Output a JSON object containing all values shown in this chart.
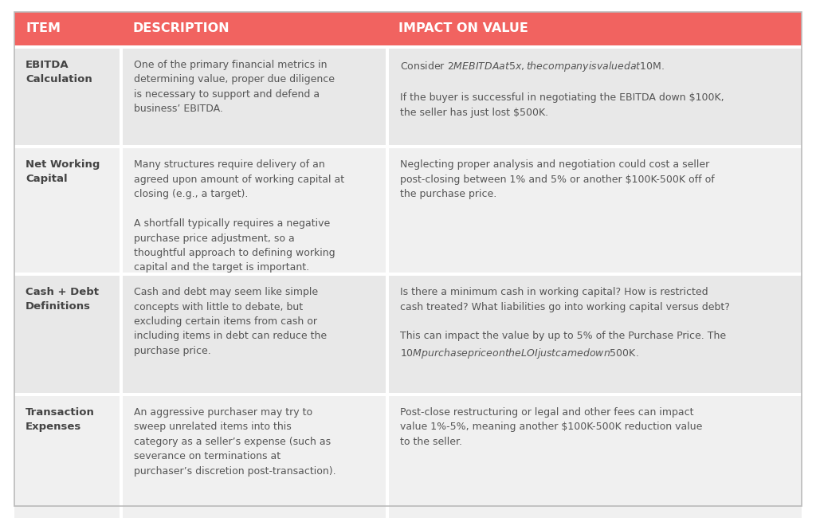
{
  "header_bg": "#F16360",
  "header_text_color": "#FFFFFF",
  "row_bg_1": "#E8E8E8",
  "row_bg_2": "#F0F0F0",
  "cell_text_color": "#555555",
  "item_text_color": "#444444",
  "outer_bg": "#FFFFFF",
  "headers": [
    "ITEM",
    "DESCRIPTION",
    "IMPACT ON VALUE"
  ],
  "rows": [
    {
      "item": "EBITDA\nCalculation",
      "description": "One of the primary financial metrics in\ndetermining value, proper due diligence\nis necessary to support and defend a\nbusiness’ EBITDA.",
      "impact": "Consider $2M EBITDA at 5x, the company is valued at $10M.\n\nIf the buyer is successful in negotiating the EBITDA down $100K,\nthe seller has just lost $500K."
    },
    {
      "item": "Net Working\nCapital",
      "description": "Many structures require delivery of an\nagreed upon amount of working capital at\nclosing (e.g., a target).\n\nA shortfall typically requires a negative\npurchase price adjustment, so a\nthoughtful approach to defining working\ncapital and the target is important.",
      "impact": "Neglecting proper analysis and negotiation could cost a seller\npost-closing between 1% and 5% or another $100K-500K off of\nthe purchase price."
    },
    {
      "item": "Cash + Debt\nDefinitions",
      "description": "Cash and debt may seem like simple\nconcepts with little to debate, but\nexcluding certain items from cash or\nincluding items in debt can reduce the\npurchase price.",
      "impact": "Is there a minimum cash in working capital? How is restricted\ncash treated? What liabilities go into working capital versus debt?\n\nThis can impact the value by up to 5% of the Purchase Price. The\n$10M purchase price on the LOI just came down $500K."
    },
    {
      "item": "Transaction\nExpenses",
      "description": "An aggressive purchaser may try to\nsweep unrelated items into this\ncategory as a seller’s expense (such as\nseverance on terminations at\npurchaser’s discretion post-transaction).",
      "impact": "Post-close restructuring or legal and other fees can impact\nvalue 1%-5%, meaning another $100K-500K reduction value\nto the seller."
    }
  ]
}
